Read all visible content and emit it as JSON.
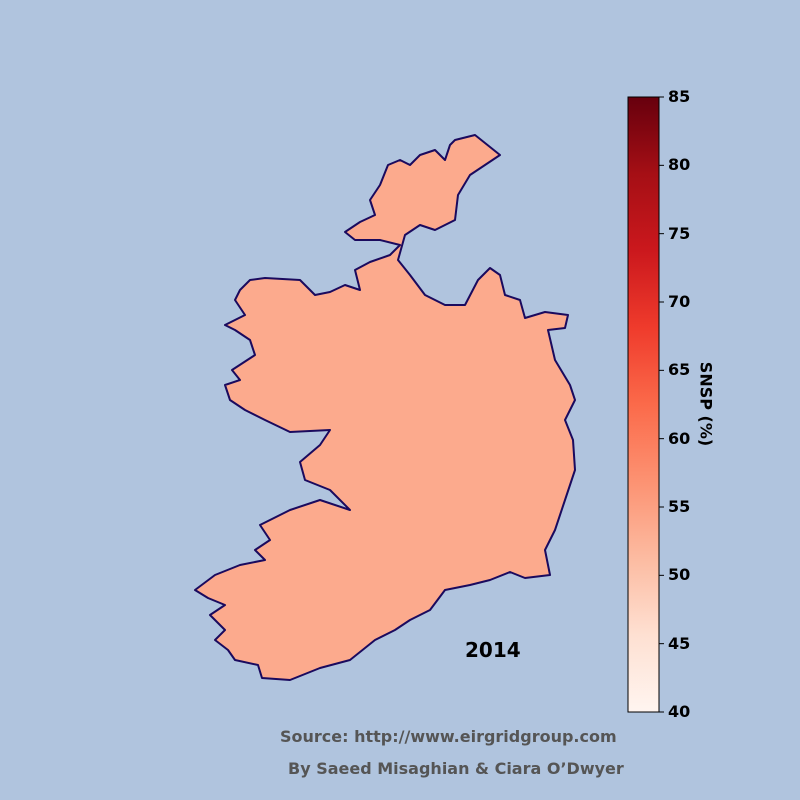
{
  "chart_data": {
    "type": "choropleth",
    "region": "Ireland",
    "year_label": "2014",
    "value": 52,
    "colorbar": {
      "label": "SNSP (%)",
      "range": [
        40,
        85
      ],
      "ticks": [
        "40",
        "45",
        "50",
        "55",
        "60",
        "65",
        "70",
        "75",
        "80",
        "85"
      ],
      "colormap": "Reds",
      "stops": [
        "#fff5f0",
        "#fee0d2",
        "#fcbba1",
        "#fc9272",
        "#fb6a4a",
        "#ef3b2c",
        "#cb181d",
        "#a50f15",
        "#67000d"
      ]
    }
  },
  "colors": {
    "background": "#b0c4de",
    "land_fill": "#fcaa8d",
    "coastline": "#1a0a5e"
  },
  "footer": {
    "source": "Source: http://www.eirgridgroup.com",
    "authors": "By Saeed Misaghian & Ciara O’Dwyer"
  }
}
